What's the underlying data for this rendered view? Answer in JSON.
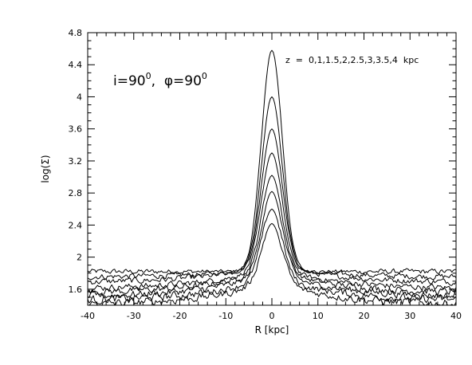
{
  "chart_data": {
    "type": "line",
    "title": "",
    "xlabel": "R [kpc]",
    "ylabel": "log(Σ)",
    "xlim": [
      -40,
      40
    ],
    "ylim": [
      1.4,
      4.8
    ],
    "xticks": [
      -40,
      -30,
      -20,
      -10,
      0,
      10,
      20,
      30,
      40
    ],
    "yticks": [
      1.6,
      2,
      2.4,
      2.8,
      3.2,
      3.6,
      4,
      4.4,
      4.8
    ],
    "xtick_labels": [
      "-40",
      "-30",
      "-20",
      "-10",
      "0",
      "10",
      "20",
      "30",
      "40"
    ],
    "ytick_labels": [
      "1.6",
      "2",
      "2.4",
      "2.8",
      "3.2",
      "3.6",
      "4",
      "4.4",
      "4.8"
    ],
    "grid": false,
    "annotation_inclination": {
      "i_prefix": "i=90",
      "i_sup": "0",
      "sep": ",  ",
      "phi_prefix": "φ=90",
      "phi_sup": "0"
    },
    "annotation_z": "z  =  0,1,1.5,2,2.5,3,3.5,4  kpc",
    "x_units": "kpc",
    "series": [
      {
        "z": 0,
        "peak": 4.58,
        "edge": 1.82
      },
      {
        "z": 1,
        "peak": 4.0,
        "edge": 1.75
      },
      {
        "z": 1.5,
        "peak": 3.6,
        "edge": 1.68
      },
      {
        "z": 2,
        "peak": 3.3,
        "edge": 1.6
      },
      {
        "z": 2.5,
        "peak": 3.02,
        "edge": 1.55
      },
      {
        "z": 3,
        "peak": 2.82,
        "edge": 1.5
      },
      {
        "z": 3.5,
        "peak": 2.6,
        "edge": 1.45
      },
      {
        "z": 4,
        "peak": 2.42,
        "edge": 1.4
      }
    ]
  }
}
